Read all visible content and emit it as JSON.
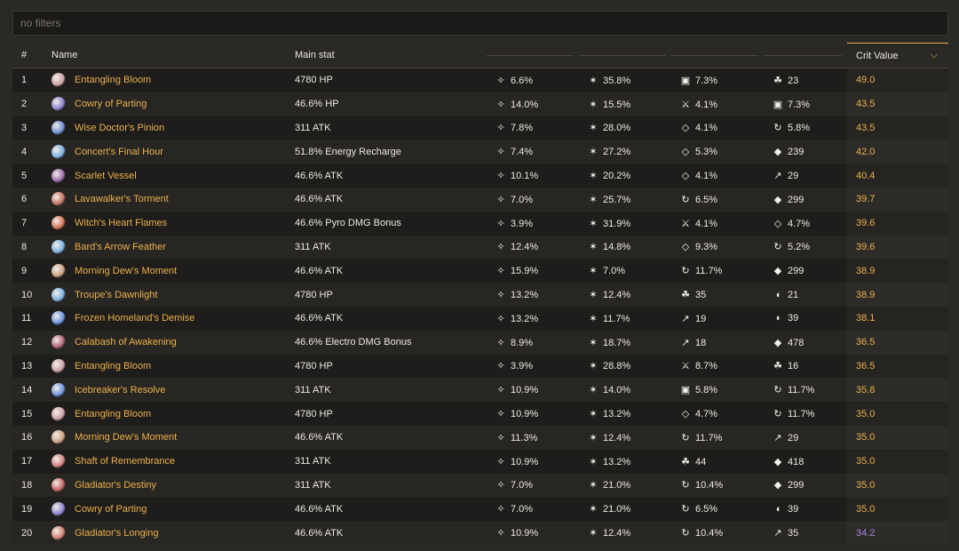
{
  "filter": {
    "placeholder": "no filters",
    "value": ""
  },
  "headers": {
    "index": "#",
    "name": "Name",
    "main_stat": "Main stat",
    "crit_value": "Crit Value"
  },
  "rows": [
    {
      "idx": "1",
      "name": "Entangling Bloom",
      "main": "4780 HP",
      "s1": {
        "icon": "crit-rate-icon",
        "val": "6.6%"
      },
      "s2": {
        "icon": "crit-dmg-icon",
        "val": "35.8%"
      },
      "s3": {
        "icon": "def-percent-icon",
        "val": "7.3%"
      },
      "s4": {
        "icon": "elemental-mastery-icon",
        "val": "23"
      },
      "cv": "49.0",
      "cv_color": "gold",
      "art_color": "#c9a0a0"
    },
    {
      "idx": "2",
      "name": "Cowry of Parting",
      "main": "46.6% HP",
      "s1": {
        "icon": "crit-rate-icon",
        "val": "14.0%"
      },
      "s2": {
        "icon": "crit-dmg-icon",
        "val": "15.5%"
      },
      "s3": {
        "icon": "atk-percent-icon",
        "val": "4.1%"
      },
      "s4": {
        "icon": "def-percent-icon",
        "val": "7.3%"
      },
      "cv": "43.5",
      "cv_color": "gold",
      "art_color": "#8a7fd0"
    },
    {
      "idx": "3",
      "name": "Wise Doctor's Pinion",
      "main": "311 ATK",
      "s1": {
        "icon": "crit-rate-icon",
        "val": "7.8%"
      },
      "s2": {
        "icon": "crit-dmg-icon",
        "val": "28.0%"
      },
      "s3": {
        "icon": "hp-percent-icon",
        "val": "4.1%"
      },
      "s4": {
        "icon": "energy-recharge-icon",
        "val": "5.8%"
      },
      "cv": "43.5",
      "cv_color": "gold",
      "art_color": "#6a8ad0"
    },
    {
      "idx": "4",
      "name": "Concert's Final Hour",
      "main": "51.8% Energy Recharge",
      "s1": {
        "icon": "crit-rate-icon",
        "val": "7.4%"
      },
      "s2": {
        "icon": "crit-dmg-icon",
        "val": "27.2%"
      },
      "s3": {
        "icon": "hp-percent-icon",
        "val": "5.3%"
      },
      "s4": {
        "icon": "hp-icon",
        "val": "239"
      },
      "cv": "42.0",
      "cv_color": "gold",
      "art_color": "#7ab0e0"
    },
    {
      "idx": "5",
      "name": "Scarlet Vessel",
      "main": "46.6% ATK",
      "s1": {
        "icon": "crit-rate-icon",
        "val": "10.1%"
      },
      "s2": {
        "icon": "crit-dmg-icon",
        "val": "20.2%"
      },
      "s3": {
        "icon": "hp-percent-icon",
        "val": "4.1%"
      },
      "s4": {
        "icon": "atk-icon",
        "val": "29"
      },
      "cv": "40.4",
      "cv_color": "gold",
      "art_color": "#9a6ab0"
    },
    {
      "idx": "6",
      "name": "Lavawalker's Torment",
      "main": "46.6% ATK",
      "s1": {
        "icon": "crit-rate-icon",
        "val": "7.0%"
      },
      "s2": {
        "icon": "crit-dmg-icon",
        "val": "25.7%"
      },
      "s3": {
        "icon": "energy-recharge-icon",
        "val": "6.5%"
      },
      "s4": {
        "icon": "hp-icon",
        "val": "299"
      },
      "cv": "39.7",
      "cv_color": "gold",
      "art_color": "#c07060"
    },
    {
      "idx": "7",
      "name": "Witch's Heart Flames",
      "main": "46.6% Pyro DMG Bonus",
      "s1": {
        "icon": "crit-rate-icon",
        "val": "3.9%"
      },
      "s2": {
        "icon": "crit-dmg-icon",
        "val": "31.9%"
      },
      "s3": {
        "icon": "atk-percent-icon",
        "val": "4.1%"
      },
      "s4": {
        "icon": "hp-percent-icon",
        "val": "4.7%"
      },
      "cv": "39.6",
      "cv_color": "gold",
      "art_color": "#d07050"
    },
    {
      "idx": "8",
      "name": "Bard's Arrow Feather",
      "main": "311 ATK",
      "s1": {
        "icon": "crit-rate-icon",
        "val": "12.4%"
      },
      "s2": {
        "icon": "crit-dmg-icon",
        "val": "14.8%"
      },
      "s3": {
        "icon": "hp-percent-icon",
        "val": "9.3%"
      },
      "s4": {
        "icon": "energy-recharge-icon",
        "val": "5.2%"
      },
      "cv": "39.6",
      "cv_color": "gold",
      "art_color": "#7ab0e0"
    },
    {
      "idx": "9",
      "name": "Morning Dew's Moment",
      "main": "46.6% ATK",
      "s1": {
        "icon": "crit-rate-icon",
        "val": "15.9%"
      },
      "s2": {
        "icon": "crit-dmg-icon",
        "val": "7.0%"
      },
      "s3": {
        "icon": "energy-recharge-icon",
        "val": "11.7%"
      },
      "s4": {
        "icon": "hp-icon",
        "val": "299"
      },
      "cv": "38.9",
      "cv_color": "gold",
      "art_color": "#c9a080"
    },
    {
      "idx": "10",
      "name": "Troupe's Dawnlight",
      "main": "4780 HP",
      "s1": {
        "icon": "crit-rate-icon",
        "val": "13.2%"
      },
      "s2": {
        "icon": "crit-dmg-icon",
        "val": "12.4%"
      },
      "s3": {
        "icon": "elemental-mastery-icon",
        "val": "35"
      },
      "s4": {
        "icon": "def-icon",
        "val": "21"
      },
      "cv": "38.9",
      "cv_color": "gold",
      "art_color": "#7ab0e0"
    },
    {
      "idx": "11",
      "name": "Frozen Homeland's Demise",
      "main": "46.6% ATK",
      "s1": {
        "icon": "crit-rate-icon",
        "val": "13.2%"
      },
      "s2": {
        "icon": "crit-dmg-icon",
        "val": "11.7%"
      },
      "s3": {
        "icon": "atk-icon",
        "val": "19"
      },
      "s4": {
        "icon": "def-icon",
        "val": "39"
      },
      "cv": "38.1",
      "cv_color": "gold",
      "art_color": "#6a90e0"
    },
    {
      "idx": "12",
      "name": "Calabash of Awakening",
      "main": "46.6% Electro DMG Bonus",
      "s1": {
        "icon": "crit-rate-icon",
        "val": "8.9%"
      },
      "s2": {
        "icon": "crit-dmg-icon",
        "val": "18.7%"
      },
      "s3": {
        "icon": "atk-icon",
        "val": "18"
      },
      "s4": {
        "icon": "hp-icon",
        "val": "478"
      },
      "cv": "36.5",
      "cv_color": "gold",
      "art_color": "#b06070"
    },
    {
      "idx": "13",
      "name": "Entangling Bloom",
      "main": "4780 HP",
      "s1": {
        "icon": "crit-rate-icon",
        "val": "3.9%"
      },
      "s2": {
        "icon": "crit-dmg-icon",
        "val": "28.8%"
      },
      "s3": {
        "icon": "atk-percent-icon",
        "val": "8.7%"
      },
      "s4": {
        "icon": "elemental-mastery-icon",
        "val": "16"
      },
      "cv": "36.5",
      "cv_color": "gold",
      "art_color": "#c9a0a0"
    },
    {
      "idx": "14",
      "name": "Icebreaker's Resolve",
      "main": "311 ATK",
      "s1": {
        "icon": "crit-rate-icon",
        "val": "10.9%"
      },
      "s2": {
        "icon": "crit-dmg-icon",
        "val": "14.0%"
      },
      "s3": {
        "icon": "def-percent-icon",
        "val": "5.8%"
      },
      "s4": {
        "icon": "energy-recharge-icon",
        "val": "11.7%"
      },
      "cv": "35.8",
      "cv_color": "gold",
      "art_color": "#6a90e0"
    },
    {
      "idx": "15",
      "name": "Entangling Bloom",
      "main": "4780 HP",
      "s1": {
        "icon": "crit-rate-icon",
        "val": "10.9%"
      },
      "s2": {
        "icon": "crit-dmg-icon",
        "val": "13.2%"
      },
      "s3": {
        "icon": "hp-percent-icon",
        "val": "4.7%"
      },
      "s4": {
        "icon": "energy-recharge-icon",
        "val": "11.7%"
      },
      "cv": "35.0",
      "cv_color": "gold",
      "art_color": "#c9a0a0"
    },
    {
      "idx": "16",
      "name": "Morning Dew's Moment",
      "main": "46.6% ATK",
      "s1": {
        "icon": "crit-rate-icon",
        "val": "11.3%"
      },
      "s2": {
        "icon": "crit-dmg-icon",
        "val": "12.4%"
      },
      "s3": {
        "icon": "energy-recharge-icon",
        "val": "11.7%"
      },
      "s4": {
        "icon": "atk-icon",
        "val": "29"
      },
      "cv": "35.0",
      "cv_color": "gold",
      "art_color": "#c9a080"
    },
    {
      "idx": "17",
      "name": "Shaft of Remembrance",
      "main": "311 ATK",
      "s1": {
        "icon": "crit-rate-icon",
        "val": "10.9%"
      },
      "s2": {
        "icon": "crit-dmg-icon",
        "val": "13.2%"
      },
      "s3": {
        "icon": "elemental-mastery-icon",
        "val": "44"
      },
      "s4": {
        "icon": "hp-icon",
        "val": "418"
      },
      "cv": "35.0",
      "cv_color": "gold",
      "art_color": "#d08080"
    },
    {
      "idx": "18",
      "name": "Gladiator's Destiny",
      "main": "311 ATK",
      "s1": {
        "icon": "crit-rate-icon",
        "val": "7.0%"
      },
      "s2": {
        "icon": "crit-dmg-icon",
        "val": "21.0%"
      },
      "s3": {
        "icon": "energy-recharge-icon",
        "val": "10.4%"
      },
      "s4": {
        "icon": "hp-icon",
        "val": "299"
      },
      "cv": "35.0",
      "cv_color": "gold",
      "art_color": "#c06060"
    },
    {
      "idx": "19",
      "name": "Cowry of Parting",
      "main": "46.6% ATK",
      "s1": {
        "icon": "crit-rate-icon",
        "val": "7.0%"
      },
      "s2": {
        "icon": "crit-dmg-icon",
        "val": "21.0%"
      },
      "s3": {
        "icon": "energy-recharge-icon",
        "val": "6.5%"
      },
      "s4": {
        "icon": "def-icon",
        "val": "39"
      },
      "cv": "35.0",
      "cv_color": "gold",
      "art_color": "#8a7fd0"
    },
    {
      "idx": "20",
      "name": "Gladiator's Longing",
      "main": "46.6% ATK",
      "s1": {
        "icon": "crit-rate-icon",
        "val": "10.9%"
      },
      "s2": {
        "icon": "crit-dmg-icon",
        "val": "12.4%"
      },
      "s3": {
        "icon": "energy-recharge-icon",
        "val": "10.4%"
      },
      "s4": {
        "icon": "atk-icon",
        "val": "35"
      },
      "cv": "34.2",
      "cv_color": "purple",
      "art_color": "#d08070"
    }
  ],
  "colors": {
    "gold": "#e9b04c",
    "purple": "#a782e6",
    "row_odd": "#1e1d1b",
    "row_even": "#282623"
  }
}
